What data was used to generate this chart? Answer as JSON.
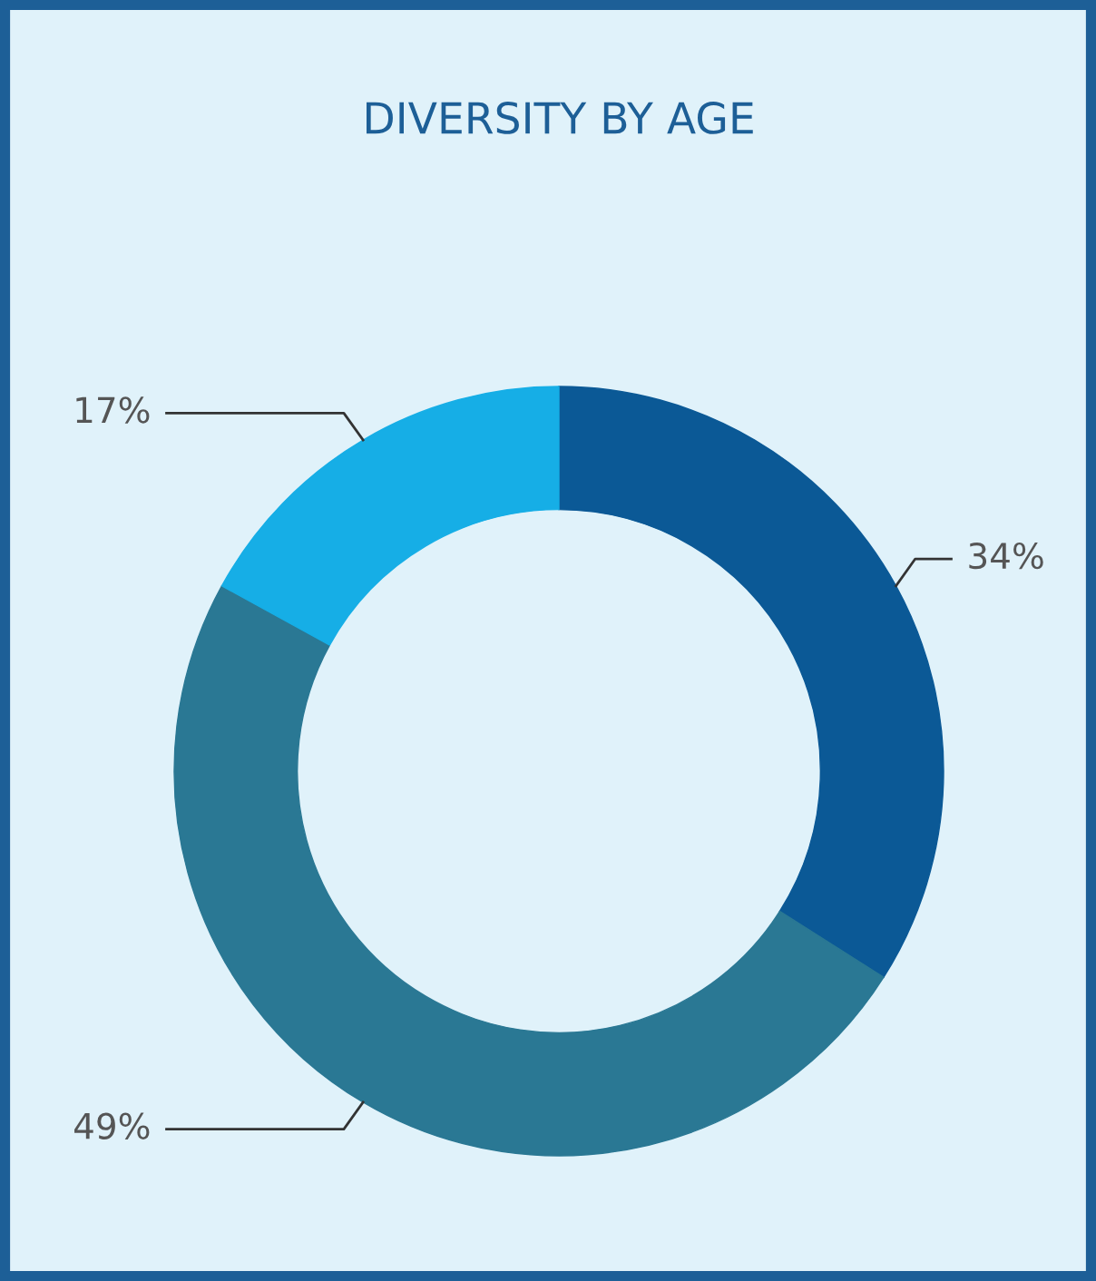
{
  "chart_data": {
    "type": "donut",
    "title": "DIVERSITY BY AGE",
    "categories": [
      null,
      null,
      null
    ],
    "values": [
      34,
      49,
      17
    ],
    "colors": [
      "#0b5996",
      "#2a7894",
      "#16aee6"
    ],
    "value_labels": [
      "34%",
      "49%",
      "17%"
    ]
  }
}
